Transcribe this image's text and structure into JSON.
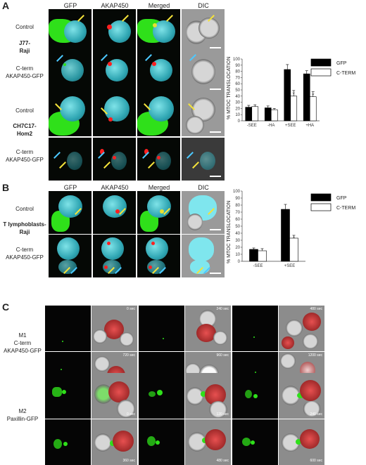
{
  "panel_a": {
    "letter": "A",
    "columns": [
      "GFP",
      "AKAP450",
      "Merged",
      "DIC"
    ],
    "row_labels": [
      "Control",
      "J77-\nRaji",
      "C-term\nAKAP450-GFP",
      "Control",
      "CH7C17-\nHom2",
      "C-term\nAKAP450-GFP"
    ]
  },
  "panel_b": {
    "letter": "B",
    "columns": [
      "GFP",
      "AKAP450",
      "Merged",
      "DIC"
    ],
    "row_labels": [
      "Control",
      "T lymphoblasts-\nRaji",
      "C-term\nAKAP450-GFP"
    ]
  },
  "panel_c": {
    "letter": "C",
    "m1_label": "M1\nC-term\nAKAP450-GFP",
    "m2_label": "M2\nPaxillin-GFP",
    "m1_times": [
      "0 sec",
      "240 sec",
      "480 sec",
      "720 sec",
      "960 sec",
      "1200 sec"
    ],
    "m2_times": [
      "0 sec",
      "120 sec",
      "240 sec",
      "360 sec",
      "480 sec",
      "600 sec"
    ]
  },
  "chart_data": [
    {
      "type": "bar",
      "categories": [
        "-SEE",
        "-HA",
        "+SEE",
        "+HA"
      ],
      "series": [
        {
          "name": "GFP",
          "values": [
            22,
            21,
            83,
            76
          ]
        },
        {
          "name": "C-TERM",
          "values": [
            23,
            18,
            40,
            39
          ]
        }
      ],
      "errors": {
        "GFP": [
          3,
          3,
          8,
          5
        ],
        "C-TERM": [
          3,
          2,
          9,
          8
        ]
      },
      "significance": [
        "",
        "",
        "*",
        "*"
      ],
      "ylabel": "% MTOC TRANSLOCATION",
      "ylim": [
        0,
        100
      ],
      "yticks": [
        0,
        10,
        20,
        30,
        40,
        50,
        60,
        70,
        80,
        90,
        100
      ],
      "legend_position": "top-right",
      "colors": {
        "GFP": "#000000",
        "C-TERM": "#ffffff"
      }
    },
    {
      "type": "bar",
      "categories": [
        "-SEE",
        "+SEE"
      ],
      "series": [
        {
          "name": "GFP",
          "values": [
            17,
            74
          ]
        },
        {
          "name": "C-TERM",
          "values": [
            15,
            33
          ]
        }
      ],
      "errors": {
        "GFP": [
          2,
          7
        ],
        "C-TERM": [
          3,
          4
        ]
      },
      "significance": [
        "",
        "*"
      ],
      "ylabel": "% MTOC TRANSLOCATION",
      "ylim": [
        0,
        100
      ],
      "yticks": [
        0,
        10,
        20,
        30,
        40,
        50,
        60,
        70,
        80,
        90,
        100
      ],
      "legend_position": "top-right",
      "colors": {
        "GFP": "#000000",
        "C-TERM": "#ffffff"
      }
    }
  ]
}
